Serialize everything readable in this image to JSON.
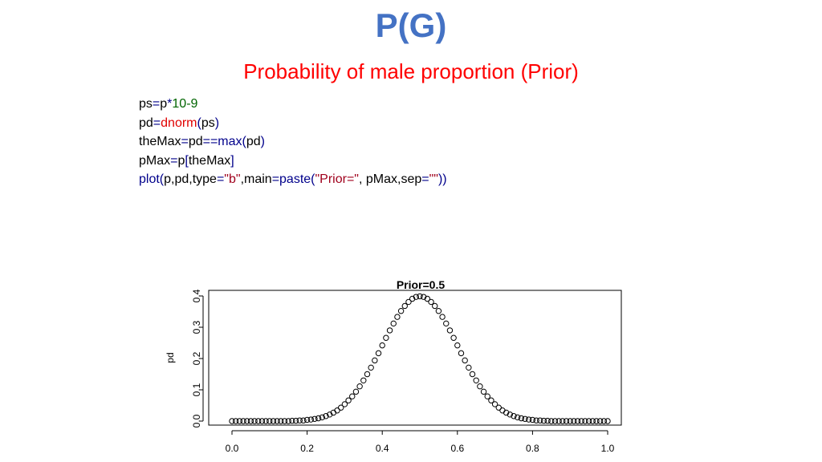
{
  "slide": {
    "title": "P(G)",
    "subtitle": "Probability of male proportion (Prior)"
  },
  "colors": {
    "title": "#4472c4",
    "subtitle": "#ff0000",
    "code_default": "#000000",
    "code_operator": "#00008b",
    "code_function": "#e00000",
    "code_builtin": "#00008b",
    "code_number": "#006400",
    "code_string": "#a0001c"
  },
  "code": {
    "lines": [
      [
        {
          "t": "ps",
          "c": "code_default"
        },
        {
          "t": "=",
          "c": "code_operator"
        },
        {
          "t": "p",
          "c": "code_default"
        },
        {
          "t": "*",
          "c": "code_operator"
        },
        {
          "t": "10-9",
          "c": "code_number"
        }
      ],
      [
        {
          "t": "pd",
          "c": "code_default"
        },
        {
          "t": "=",
          "c": "code_operator"
        },
        {
          "t": "dnorm",
          "c": "code_function"
        },
        {
          "t": "(",
          "c": "code_operator"
        },
        {
          "t": "ps",
          "c": "code_default"
        },
        {
          "t": ")",
          "c": "code_operator"
        }
      ],
      [
        {
          "t": "theMax",
          "c": "code_default"
        },
        {
          "t": "=",
          "c": "code_operator"
        },
        {
          "t": "pd",
          "c": "code_default"
        },
        {
          "t": "==",
          "c": "code_operator"
        },
        {
          "t": "max",
          "c": "code_builtin"
        },
        {
          "t": "(",
          "c": "code_operator"
        },
        {
          "t": "pd",
          "c": "code_default"
        },
        {
          "t": ")",
          "c": "code_operator"
        }
      ],
      [
        {
          "t": "pMax",
          "c": "code_default"
        },
        {
          "t": "=",
          "c": "code_operator"
        },
        {
          "t": "p",
          "c": "code_default"
        },
        {
          "t": "[",
          "c": "code_operator"
        },
        {
          "t": "theMax",
          "c": "code_default"
        },
        {
          "t": "]",
          "c": "code_operator"
        }
      ],
      [
        {
          "t": "plot",
          "c": "code_builtin"
        },
        {
          "t": "(",
          "c": "code_operator"
        },
        {
          "t": "p,pd,type",
          "c": "code_default"
        },
        {
          "t": "=",
          "c": "code_operator"
        },
        {
          "t": "\"b\"",
          "c": "code_string"
        },
        {
          "t": ",main",
          "c": "code_default"
        },
        {
          "t": "=",
          "c": "code_operator"
        },
        {
          "t": "paste",
          "c": "code_builtin"
        },
        {
          "t": "(",
          "c": "code_operator"
        },
        {
          "t": "\"Prior=\"",
          "c": "code_string"
        },
        {
          "t": ", pMax,sep",
          "c": "code_default"
        },
        {
          "t": "=",
          "c": "code_operator"
        },
        {
          "t": "\"\"",
          "c": "code_string"
        },
        {
          "t": "))",
          "c": "code_operator"
        }
      ]
    ]
  },
  "chart_data": {
    "type": "scatter",
    "title": "Prior=0.5",
    "xlabel": "",
    "ylabel": "pd",
    "xlim": [
      0,
      1
    ],
    "ylim": [
      0,
      0.4
    ],
    "x_ticks": [
      "0.0",
      "0.2",
      "0.4",
      "0.6",
      "0.8",
      "1.0"
    ],
    "y_ticks": [
      "0.0",
      "0.1",
      "0.2",
      "0.3",
      "0.4"
    ],
    "grid": false,
    "marker": "open-circle",
    "series": [
      {
        "x": [
          0.0,
          0.01,
          0.02,
          0.03,
          0.04,
          0.05,
          0.06,
          0.07,
          0.08,
          0.09,
          0.1,
          0.11,
          0.12,
          0.13,
          0.14,
          0.15,
          0.16,
          0.17,
          0.18,
          0.19,
          0.2,
          0.21,
          0.22,
          0.23,
          0.24,
          0.25,
          0.26,
          0.27,
          0.28,
          0.29,
          0.3,
          0.31,
          0.32,
          0.33,
          0.34,
          0.35,
          0.36,
          0.37,
          0.38,
          0.39,
          0.4,
          0.41,
          0.42,
          0.43,
          0.44,
          0.45,
          0.46,
          0.47,
          0.48,
          0.49,
          0.5,
          0.51,
          0.52,
          0.53,
          0.54,
          0.55,
          0.56,
          0.57,
          0.58,
          0.59,
          0.6,
          0.61,
          0.62,
          0.63,
          0.64,
          0.65,
          0.66,
          0.67,
          0.68,
          0.69,
          0.7,
          0.71,
          0.72,
          0.73,
          0.74,
          0.75,
          0.76,
          0.77,
          0.78,
          0.79,
          0.8,
          0.81,
          0.82,
          0.83,
          0.84,
          0.85,
          0.86,
          0.87,
          0.88,
          0.89,
          0.9,
          0.91,
          0.92,
          0.93,
          0.94,
          0.95,
          0.96,
          0.97,
          0.98,
          0.99,
          1.0
        ],
        "y": [
          0.0,
          0.0,
          0.0,
          0.0,
          0.0,
          0.0,
          0.0,
          0.0,
          0.0,
          0.0,
          0.0,
          0.0,
          0.0,
          0.0,
          0.0,
          0.0,
          0.001,
          0.001,
          0.002,
          0.002,
          0.004,
          0.005,
          0.007,
          0.009,
          0.012,
          0.016,
          0.021,
          0.027,
          0.034,
          0.043,
          0.054,
          0.066,
          0.079,
          0.094,
          0.111,
          0.13,
          0.15,
          0.171,
          0.194,
          0.217,
          0.242,
          0.266,
          0.29,
          0.312,
          0.333,
          0.352,
          0.368,
          0.381,
          0.391,
          0.397,
          0.399,
          0.397,
          0.391,
          0.381,
          0.368,
          0.352,
          0.333,
          0.312,
          0.29,
          0.266,
          0.242,
          0.217,
          0.194,
          0.171,
          0.15,
          0.13,
          0.111,
          0.094,
          0.079,
          0.066,
          0.054,
          0.043,
          0.034,
          0.027,
          0.021,
          0.016,
          0.012,
          0.009,
          0.007,
          0.005,
          0.004,
          0.002,
          0.002,
          0.001,
          0.001,
          0.0,
          0.0,
          0.0,
          0.0,
          0.0,
          0.0,
          0.0,
          0.0,
          0.0,
          0.0,
          0.0,
          0.0,
          0.0,
          0.0,
          0.0,
          0.0
        ]
      }
    ]
  }
}
